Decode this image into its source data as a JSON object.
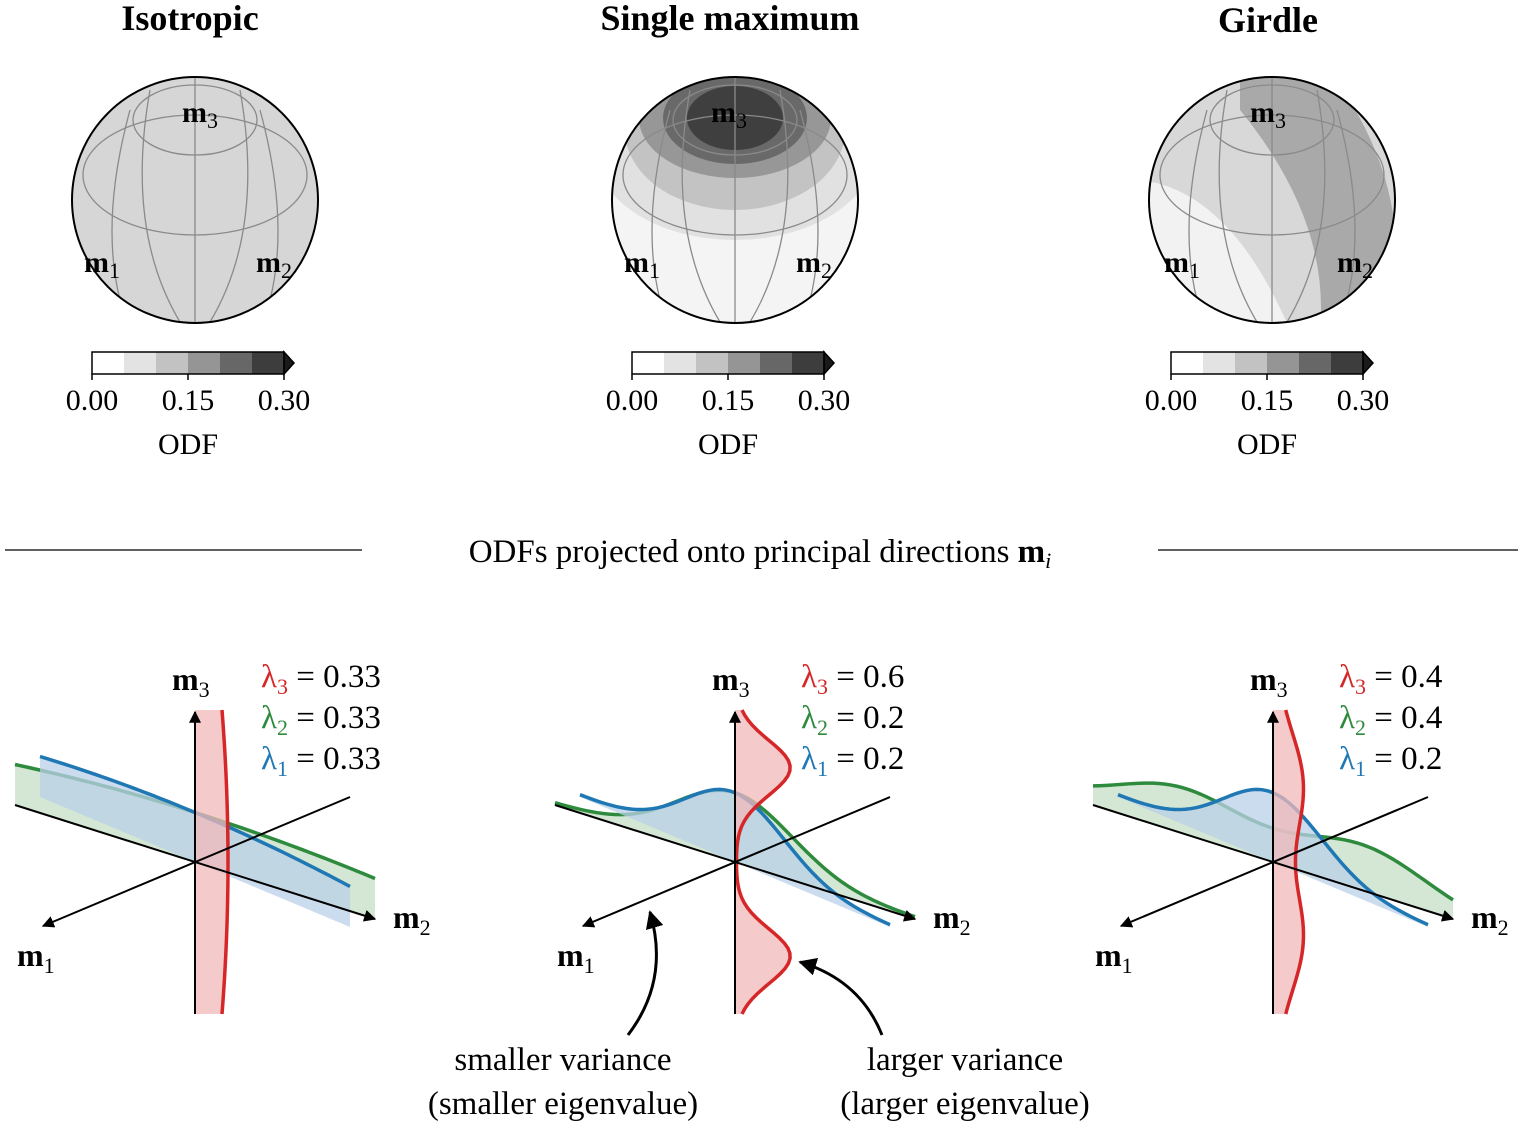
{
  "panels": [
    {
      "title": "Isotropic",
      "odf_levels": [
        [
          1
        ]
      ],
      "pattern": "uniform",
      "axes": {
        "m1": "m",
        "m1_sub": "1",
        "m2": "m",
        "m2_sub": "2",
        "m3": "m",
        "m3_sub": "3"
      },
      "eigenvalues": [
        {
          "label": "λ",
          "sub": "3",
          "eq": " = 0.33"
        },
        {
          "label": "λ",
          "sub": "2",
          "eq": " = 0.33"
        },
        {
          "label": "λ",
          "sub": "1",
          "eq": " = 0.33"
        }
      ],
      "projection": {
        "lambda3": 0.33,
        "lambda2": 0.33,
        "lambda1": 0.33
      }
    },
    {
      "title": "Single maximum",
      "pattern": "single",
      "axes": {
        "m1": "m",
        "m1_sub": "1",
        "m2": "m",
        "m2_sub": "2",
        "m3": "m",
        "m3_sub": "3"
      },
      "eigenvalues": [
        {
          "label": "λ",
          "sub": "3",
          "eq": " = 0.6"
        },
        {
          "label": "λ",
          "sub": "2",
          "eq": " = 0.2"
        },
        {
          "label": "λ",
          "sub": "1",
          "eq": " = 0.2"
        }
      ],
      "projection": {
        "lambda3": 0.6,
        "lambda2": 0.2,
        "lambda1": 0.2
      }
    },
    {
      "title": "Girdle",
      "pattern": "girdle",
      "axes": {
        "m1": "m",
        "m1_sub": "1",
        "m2": "m",
        "m2_sub": "2",
        "m3": "m",
        "m3_sub": "3"
      },
      "eigenvalues": [
        {
          "label": "λ",
          "sub": "3",
          "eq": " = 0.4"
        },
        {
          "label": "λ",
          "sub": "2",
          "eq": " = 0.4"
        },
        {
          "label": "λ",
          "sub": "1",
          "eq": " = 0.2"
        }
      ],
      "projection": {
        "lambda3": 0.4,
        "lambda2": 0.4,
        "lambda1": 0.2
      }
    }
  ],
  "colorbar": {
    "label": "ODF",
    "ticks": [
      "0.00",
      "0.15",
      "0.30"
    ],
    "shades": [
      "#ffffff",
      "#e3e3e3",
      "#c2c2c2",
      "#959595",
      "#676767",
      "#3d3d3d",
      "#1a1a1a"
    ]
  },
  "divider_text": "ODFs projected onto principal directions ",
  "divider_symbol": "m",
  "divider_sub": "i",
  "annotations": {
    "left_line1": "smaller variance",
    "left_line2": "(smaller eigenvalue)",
    "right_line1": "larger variance",
    "right_line2": "(larger eigenvalue)"
  },
  "colors": {
    "lambda3": "#d62728",
    "lambda2": "#2e8b3e",
    "lambda1": "#1f77b4",
    "fill3": "#f2b8b9",
    "fill2": "#c4dfc5",
    "fill1": "#b9d0e8",
    "grid": "#8a8a8a"
  }
}
